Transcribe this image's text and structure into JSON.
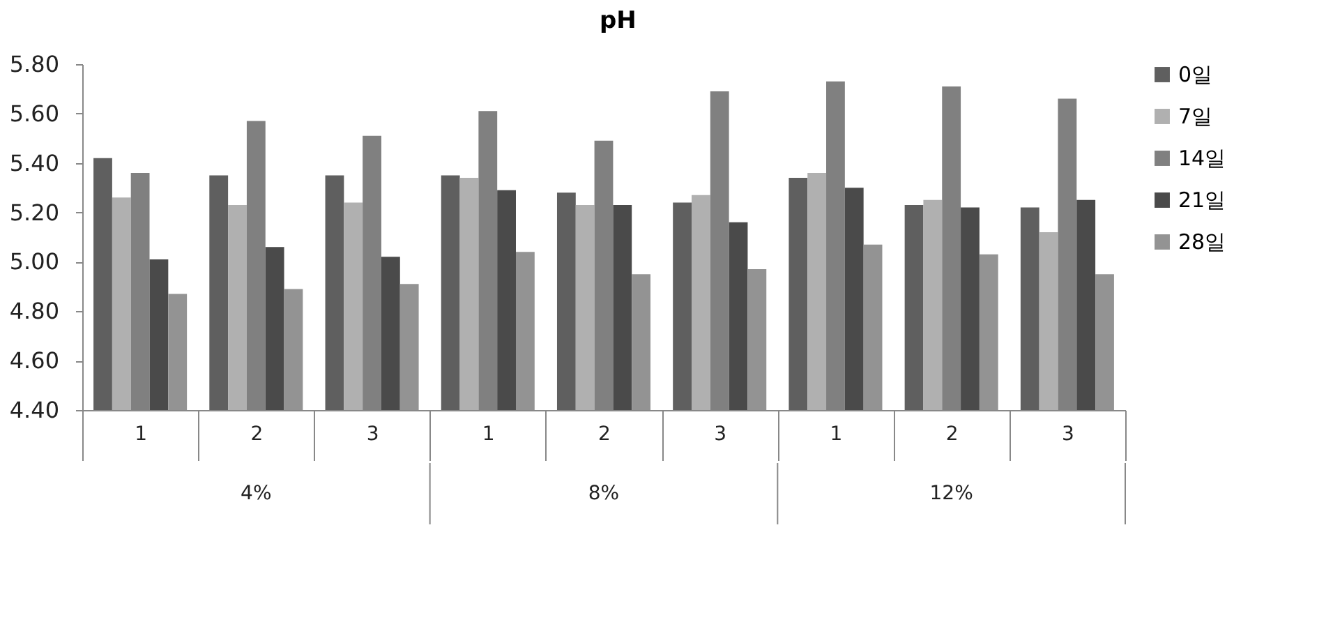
{
  "chart_data": {
    "type": "bar",
    "title": "pH",
    "categories": [
      "1",
      "2",
      "3",
      "1",
      "2",
      "3",
      "1",
      "2",
      "3"
    ],
    "annotations": [
      "4%",
      "8%",
      "12%"
    ],
    "series": [
      {
        "name": "0일",
        "color": "#5f5f5f",
        "values": [
          5.42,
          5.35,
          5.35,
          5.35,
          5.28,
          5.24,
          5.34,
          5.23,
          5.22
        ]
      },
      {
        "name": "7일",
        "color": "#b0b0b0",
        "values": [
          5.26,
          5.23,
          5.24,
          5.34,
          5.23,
          5.27,
          5.36,
          5.25,
          5.12
        ]
      },
      {
        "name": "14일",
        "color": "#808080",
        "values": [
          5.36,
          5.57,
          5.51,
          5.61,
          5.49,
          5.69,
          5.73,
          5.71,
          5.66
        ]
      },
      {
        "name": "21일",
        "color": "#4a4a4a",
        "values": [
          5.01,
          5.06,
          5.02,
          5.29,
          5.23,
          5.16,
          5.3,
          5.22,
          5.25
        ]
      },
      {
        "name": "28일",
        "color": "#939393",
        "values": [
          4.87,
          4.89,
          4.91,
          5.04,
          4.95,
          4.97,
          5.07,
          5.03,
          4.95
        ]
      }
    ],
    "ylim": [
      4.4,
      5.8
    ],
    "yticks": [
      {
        "value": 4.4,
        "label": "4.40"
      },
      {
        "value": 4.6,
        "label": "4.60"
      },
      {
        "value": 4.8,
        "label": "4.80"
      },
      {
        "value": 5.0,
        "label": "5.00"
      },
      {
        "value": 5.2,
        "label": "5.20"
      },
      {
        "value": 5.4,
        "label": "5.40"
      },
      {
        "value": 5.6,
        "label": "5.60"
      },
      {
        "value": 5.8,
        "label": "5.80"
      }
    ],
    "grid": false,
    "legend": "right"
  }
}
